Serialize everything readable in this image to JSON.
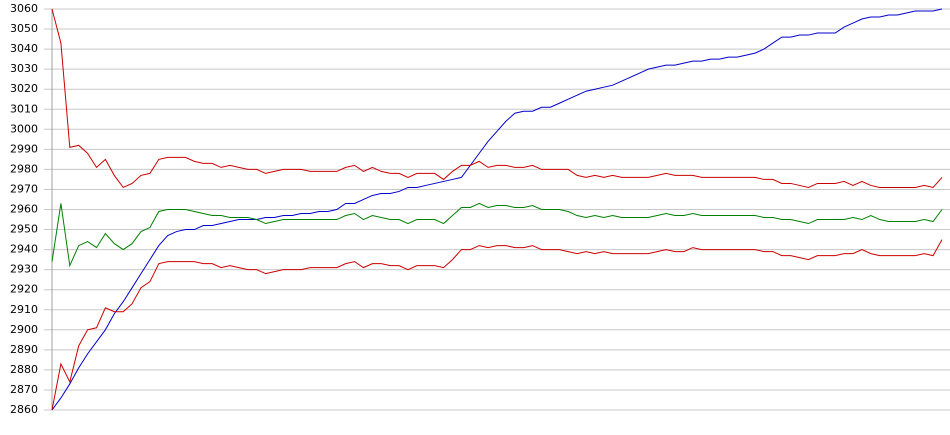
{
  "chart_data": {
    "type": "line",
    "grid": true,
    "ylim": [
      2860,
      3060
    ],
    "yticks": [
      2860,
      2870,
      2880,
      2890,
      2900,
      2910,
      2920,
      2930,
      2940,
      2950,
      2960,
      2970,
      2980,
      2990,
      3000,
      3010,
      3020,
      3030,
      3040,
      3050,
      3060
    ],
    "series": [
      {
        "color": "#0000cc",
        "values": [
          2860,
          2866,
          2873,
          2881,
          2888,
          2894,
          2900,
          2908,
          2914,
          2921,
          2928,
          2935,
          2942,
          2947,
          2949,
          2950,
          2950,
          2952,
          2952,
          2953,
          2954,
          2955,
          2955,
          2955,
          2956,
          2956,
          2957,
          2957,
          2958,
          2958,
          2959,
          2959,
          2960,
          2963,
          2963,
          2965,
          2967,
          2968,
          2968,
          2969,
          2971,
          2971,
          2972,
          2973,
          2974,
          2975,
          2976,
          2982,
          2988,
          2994,
          2999,
          3004,
          3008,
          3009,
          3009,
          3011,
          3011,
          3013,
          3015,
          3017,
          3019,
          3020,
          3021,
          3022,
          3024,
          3026,
          3028,
          3030,
          3031,
          3032,
          3032,
          3033,
          3034,
          3034,
          3035,
          3035,
          3036,
          3036,
          3037,
          3038,
          3040,
          3043,
          3046,
          3046,
          3047,
          3047,
          3048,
          3048,
          3048,
          3051,
          3053,
          3055,
          3056,
          3056,
          3057,
          3057,
          3058,
          3059,
          3059,
          3059,
          3060
        ]
      },
      {
        "color": "#cc0000",
        "values": [
          3060,
          3043,
          2991,
          2992,
          2988,
          2981,
          2985,
          2977,
          2971,
          2973,
          2977,
          2978,
          2985,
          2986,
          2986,
          2986,
          2984,
          2983,
          2983,
          2981,
          2982,
          2981,
          2980,
          2980,
          2978,
          2979,
          2980,
          2980,
          2980,
          2979,
          2979,
          2979,
          2979,
          2981,
          2982,
          2979,
          2981,
          2979,
          2978,
          2978,
          2976,
          2978,
          2978,
          2978,
          2975,
          2979,
          2982,
          2982,
          2984,
          2981,
          2982,
          2982,
          2981,
          2981,
          2982,
          2980,
          2980,
          2980,
          2980,
          2977,
          2976,
          2977,
          2976,
          2977,
          2976,
          2976,
          2976,
          2976,
          2977,
          2978,
          2977,
          2977,
          2977,
          2976,
          2976,
          2976,
          2976,
          2976,
          2976,
          2976,
          2975,
          2975,
          2973,
          2973,
          2972,
          2971,
          2973,
          2973,
          2973,
          2974,
          2972,
          2974,
          2972,
          2971,
          2971,
          2971,
          2971,
          2971,
          2972,
          2971,
          2976
        ]
      },
      {
        "color": "#008000",
        "values": [
          2934,
          2963,
          2932,
          2942,
          2944,
          2941,
          2948,
          2943,
          2940,
          2943,
          2949,
          2951,
          2959,
          2960,
          2960,
          2960,
          2959,
          2958,
          2957,
          2957,
          2956,
          2956,
          2956,
          2955,
          2953,
          2954,
          2955,
          2955,
          2955,
          2955,
          2955,
          2955,
          2955,
          2957,
          2958,
          2955,
          2957,
          2956,
          2955,
          2955,
          2953,
          2955,
          2955,
          2955,
          2953,
          2957,
          2961,
          2961,
          2963,
          2961,
          2962,
          2962,
          2961,
          2961,
          2962,
          2960,
          2960,
          2960,
          2959,
          2957,
          2956,
          2957,
          2956,
          2957,
          2956,
          2956,
          2956,
          2956,
          2957,
          2958,
          2957,
          2957,
          2958,
          2957,
          2957,
          2957,
          2957,
          2957,
          2957,
          2957,
          2956,
          2956,
          2955,
          2955,
          2954,
          2953,
          2955,
          2955,
          2955,
          2955,
          2956,
          2955,
          2957,
          2955,
          2954,
          2954,
          2954,
          2954,
          2955,
          2954,
          2960
        ]
      },
      {
        "color": "#cc0000",
        "values": [
          2860,
          2883,
          2874,
          2892,
          2900,
          2901,
          2911,
          2909,
          2909,
          2913,
          2921,
          2924,
          2933,
          2934,
          2934,
          2934,
          2934,
          2933,
          2933,
          2931,
          2932,
          2931,
          2930,
          2930,
          2928,
          2929,
          2930,
          2930,
          2930,
          2931,
          2931,
          2931,
          2931,
          2933,
          2934,
          2931,
          2933,
          2933,
          2932,
          2932,
          2930,
          2932,
          2932,
          2932,
          2931,
          2935,
          2940,
          2940,
          2942,
          2941,
          2942,
          2942,
          2941,
          2941,
          2942,
          2940,
          2940,
          2940,
          2939,
          2938,
          2939,
          2938,
          2939,
          2938,
          2938,
          2938,
          2938,
          2938,
          2939,
          2940,
          2939,
          2939,
          2941,
          2940,
          2940,
          2940,
          2940,
          2940,
          2940,
          2940,
          2939,
          2939,
          2937,
          2937,
          2936,
          2935,
          2937,
          2937,
          2937,
          2938,
          2938,
          2940,
          2938,
          2937,
          2937,
          2937,
          2937,
          2937,
          2938,
          2937,
          2945
        ]
      }
    ]
  }
}
